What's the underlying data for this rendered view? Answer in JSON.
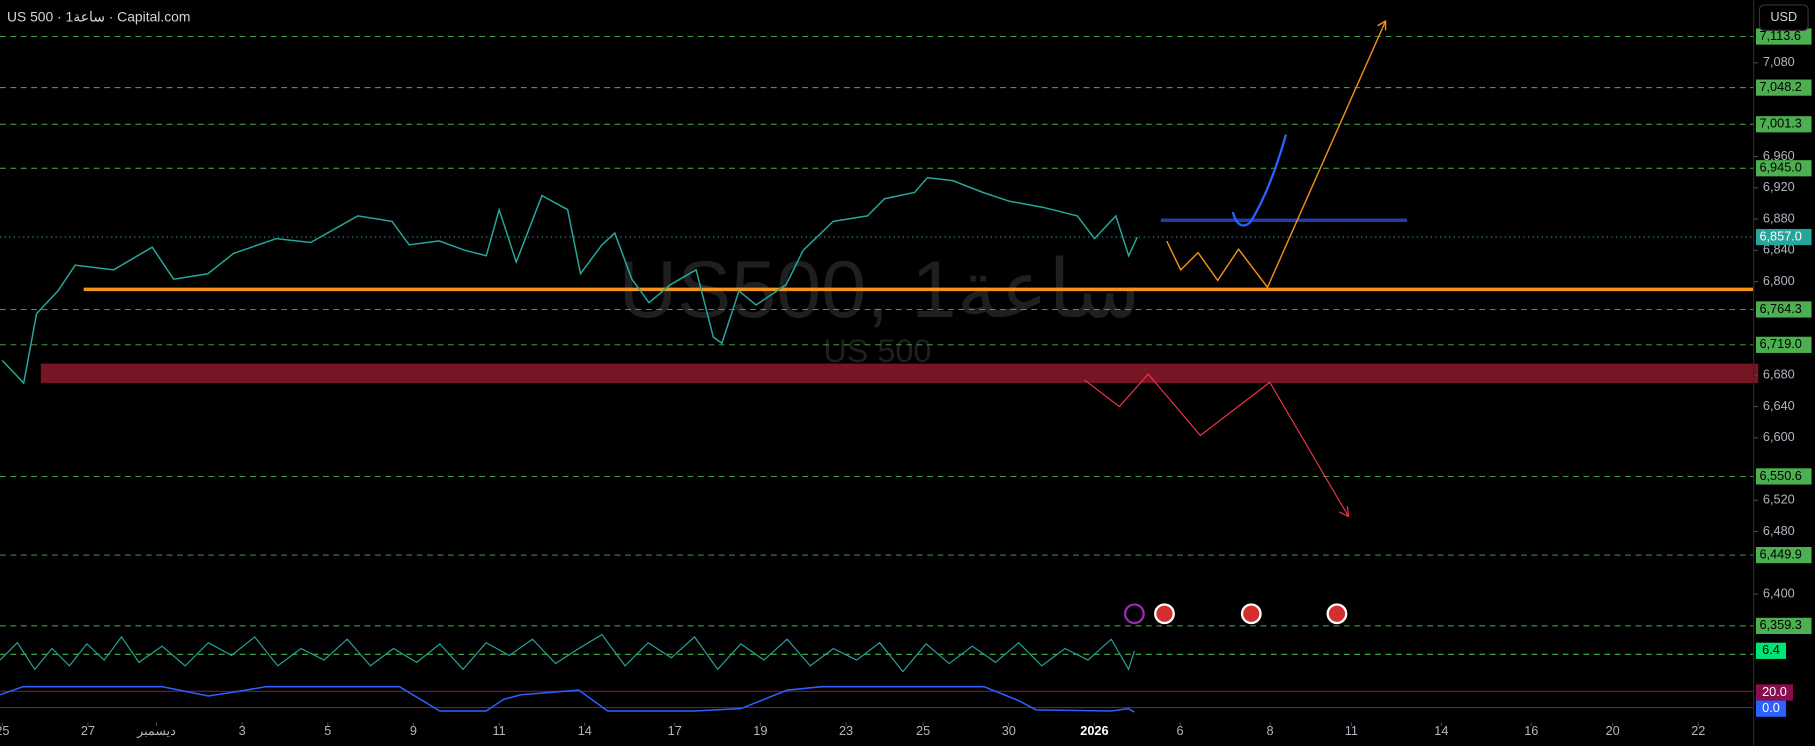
{
  "chart_data": {
    "type": "line",
    "title": "US 500 · 1ساعة · Capital.com",
    "currency_button": "USD",
    "watermark": "US500, 1ساعة",
    "watermark_sub": "US 500",
    "color": "#26a69a",
    "x": [
      0,
      0.5,
      0.8,
      1.3,
      1.7,
      2.6,
      3.5,
      4,
      4.8,
      5.4,
      6.4,
      7.2,
      8.3,
      9.1,
      9.5,
      10.2,
      10.8,
      11.3,
      11.6,
      12,
      12.6,
      13.2,
      13.5,
      14,
      14.3,
      14.7,
      15.1,
      15.6,
      16.2,
      16.6,
      16.8,
      17.2,
      17.6,
      18.3,
      18.7,
      19.4,
      20.2,
      20.6,
      21.3,
      21.6,
      22.2,
      22.9,
      23.5,
      24.3,
      25.1,
      25.5,
      26,
      26.3,
      26.5
    ],
    "values": [
      6699,
      6670,
      6759,
      6788,
      6821,
      6815,
      6844,
      6803,
      6810,
      6836,
      6855,
      6850,
      6884,
      6877,
      6847,
      6852,
      6840,
      6833,
      6892,
      6825,
      6910,
      6892,
      6810,
      6847,
      6862,
      6803,
      6773,
      6796,
      6815,
      6729,
      6721,
      6788,
      6770,
      6796,
      6840,
      6877,
      6884,
      6906,
      6914,
      6933,
      6929,
      6914,
      6903,
      6895,
      6884,
      6855,
      6884,
      6833,
      6857
    ],
    "xlim": [
      0,
      41
    ],
    "ylim": [
      6350,
      7160
    ],
    "xticks": [
      {
        "value": 0,
        "label": "25"
      },
      {
        "value": 2,
        "label": "27"
      },
      {
        "value": 3.6,
        "label": "ديسمبر"
      },
      {
        "value": 5.6,
        "label": "3"
      },
      {
        "value": 7.6,
        "label": "5"
      },
      {
        "value": 9.6,
        "label": "9"
      },
      {
        "value": 11.6,
        "label": "11"
      },
      {
        "value": 13.6,
        "label": "14"
      },
      {
        "value": 15.7,
        "label": "17"
      },
      {
        "value": 17.7,
        "label": "19"
      },
      {
        "value": 19.7,
        "label": "23"
      },
      {
        "value": 21.5,
        "label": "25"
      },
      {
        "value": 23.5,
        "label": "30"
      },
      {
        "value": 25.5,
        "label": "2026"
      },
      {
        "value": 27.5,
        "label": "6"
      },
      {
        "value": 29.6,
        "label": "8"
      },
      {
        "value": 31.5,
        "label": "11"
      },
      {
        "value": 33.6,
        "label": "14"
      },
      {
        "value": 35.7,
        "label": "16"
      },
      {
        "value": 37.6,
        "label": "20"
      },
      {
        "value": 39.6,
        "label": "22"
      }
    ],
    "yticks": [
      {
        "value": 7080,
        "label": "7,080"
      },
      {
        "value": 6960,
        "label": "6,960"
      },
      {
        "value": 6920,
        "label": "6,920"
      },
      {
        "value": 6880,
        "label": "6,880"
      },
      {
        "value": 6840,
        "label": "6,840"
      },
      {
        "value": 6800,
        "label": "6,800"
      },
      {
        "value": 6680,
        "label": "6,680"
      },
      {
        "value": 6640,
        "label": "6,640"
      },
      {
        "value": 6600,
        "label": "6,600"
      },
      {
        "value": 6520,
        "label": "6,520"
      },
      {
        "value": 6480,
        "label": "6,480"
      },
      {
        "value": 6400,
        "label": "6,400"
      }
    ],
    "levels": [
      {
        "value": 7113.6,
        "label": "7,113.6"
      },
      {
        "value": 7048.2,
        "label": "7,048.2"
      },
      {
        "value": 7001.3,
        "label": "7,001.3"
      },
      {
        "value": 6945,
        "label": "6,945.0"
      },
      {
        "value": 6764.3,
        "label": "6,764.3"
      },
      {
        "value": 6719,
        "label": "6,719.0"
      },
      {
        "value": 6550.6,
        "label": "6,550.6"
      },
      {
        "value": 6449.9,
        "label": "6,449.9"
      },
      {
        "value": 6359.3,
        "label": "6,359.3"
      }
    ],
    "level_color": "#4caf50",
    "current_price": {
      "value": 6857,
      "label": "6,857.0"
    },
    "hlines": [
      {
        "value": 6790,
        "x": [
          1.9,
          41
        ],
        "color": "#f7931a"
      },
      {
        "value": 6878.5,
        "x": [
          27.05,
          32.8
        ],
        "color": "#1e3ea8"
      }
    ],
    "zone": {
      "from": 6670,
      "to": 6695,
      "x": [
        0.9,
        41
      ],
      "color": "#8b1a2b"
    },
    "indicator_labels": [
      "6.4",
      "20.0",
      "0.0"
    ]
  }
}
